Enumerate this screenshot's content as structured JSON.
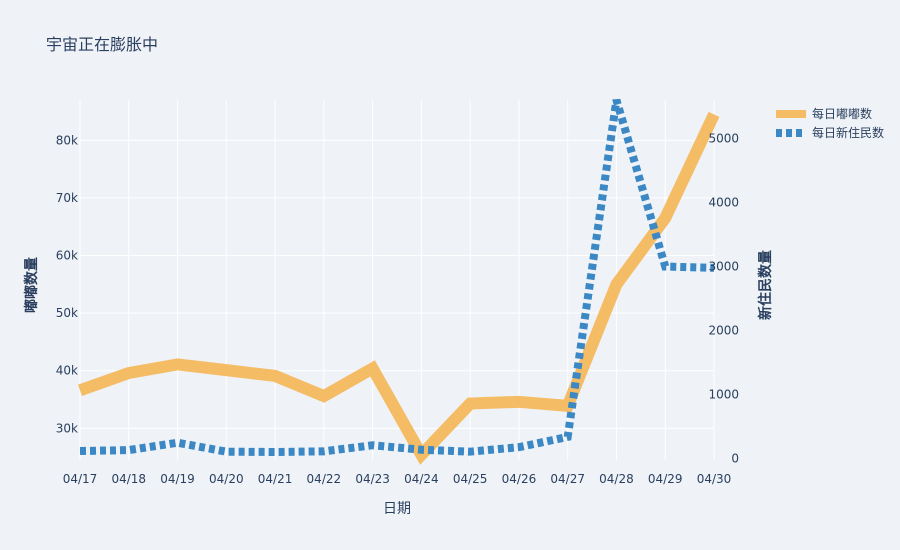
{
  "chart_data": {
    "type": "line",
    "title": "宇宙正在膨胀中",
    "xlabel": "日期",
    "ylabel_left": "嘟嘟数量",
    "ylabel_right": "新住民数量",
    "categories": [
      "04/17",
      "04/18",
      "04/19",
      "04/20",
      "04/21",
      "04/22",
      "04/23",
      "04/24",
      "04/25",
      "04/26",
      "04/27",
      "04/28",
      "04/29",
      "04/30"
    ],
    "y_left_range": [
      24500,
      87000
    ],
    "y_right_range": [
      -20,
      5600
    ],
    "y_left_ticks": [
      30000,
      40000,
      50000,
      60000,
      70000,
      80000
    ],
    "y_left_tick_labels": [
      "30k",
      "40k",
      "50k",
      "60k",
      "70k",
      "80k"
    ],
    "y_right_ticks": [
      0,
      1000,
      2000,
      3000,
      4000,
      5000
    ],
    "y_right_tick_labels": [
      "0",
      "1000",
      "2000",
      "3000",
      "4000",
      "5000"
    ],
    "grid": true,
    "legend_position": "top-right",
    "series": [
      {
        "name": "每日嘟嘟数",
        "axis": "left",
        "color": "#f5bc66",
        "style": "solid",
        "values": [
          36600,
          39600,
          41100,
          40100,
          39100,
          35600,
          40400,
          25400,
          34300,
          34600,
          33900,
          55000,
          66500,
          84500
        ]
      },
      {
        "name": "每日新住民数",
        "axis": "right",
        "color": "#3b88c4",
        "style": "dotted",
        "values": [
          120,
          135,
          250,
          110,
          105,
          115,
          210,
          140,
          110,
          180,
          340,
          5600,
          3000,
          2980
        ]
      }
    ]
  }
}
